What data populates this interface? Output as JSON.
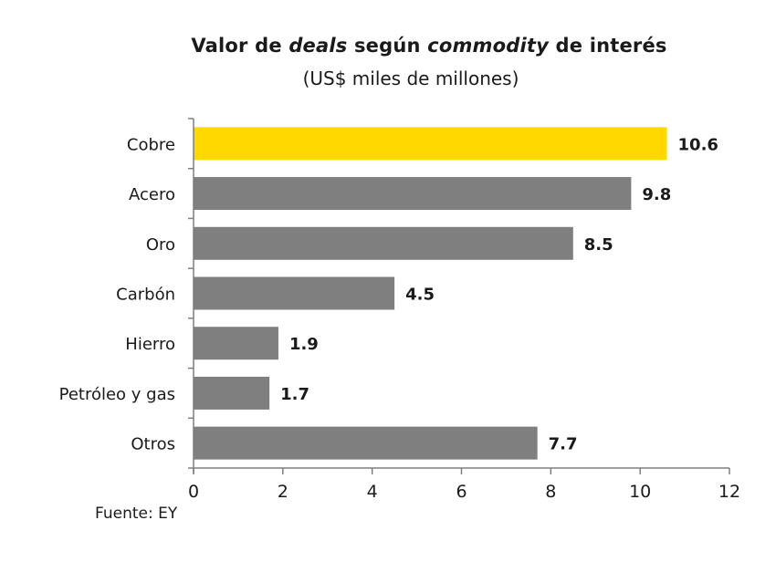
{
  "title_parts": [
    "Valor de ",
    "deals",
    " según ",
    "commodity",
    " de interés"
  ],
  "subtitle": "(US$ miles de millones)",
  "source": "Fuente: EY",
  "colors": {
    "highlight": "#FFD800",
    "bar": "#7F7F7F",
    "axis": "#7F7F7F",
    "text": "#1a1a1a"
  },
  "chart_data": {
    "type": "bar",
    "orientation": "horizontal",
    "title": "Valor de deals según commodity de interés",
    "subtitle": "(US$ miles de millones)",
    "categories": [
      "Cobre",
      "Acero",
      "Oro",
      "Carbón",
      "Hierro",
      "Petróleo y gas",
      "Otros"
    ],
    "values": [
      10.6,
      9.8,
      8.5,
      4.5,
      1.9,
      1.7,
      7.7
    ],
    "value_labels": [
      "10.6",
      "9.8",
      "8.5",
      "4.5",
      "1.9",
      "1.7",
      "7.7"
    ],
    "highlight_category": "Cobre",
    "xlim": [
      0,
      12
    ],
    "xticks": [
      0,
      2,
      4,
      6,
      8,
      10,
      12
    ],
    "xlabel": "",
    "ylabel": "",
    "grid": false,
    "legend": "none"
  }
}
